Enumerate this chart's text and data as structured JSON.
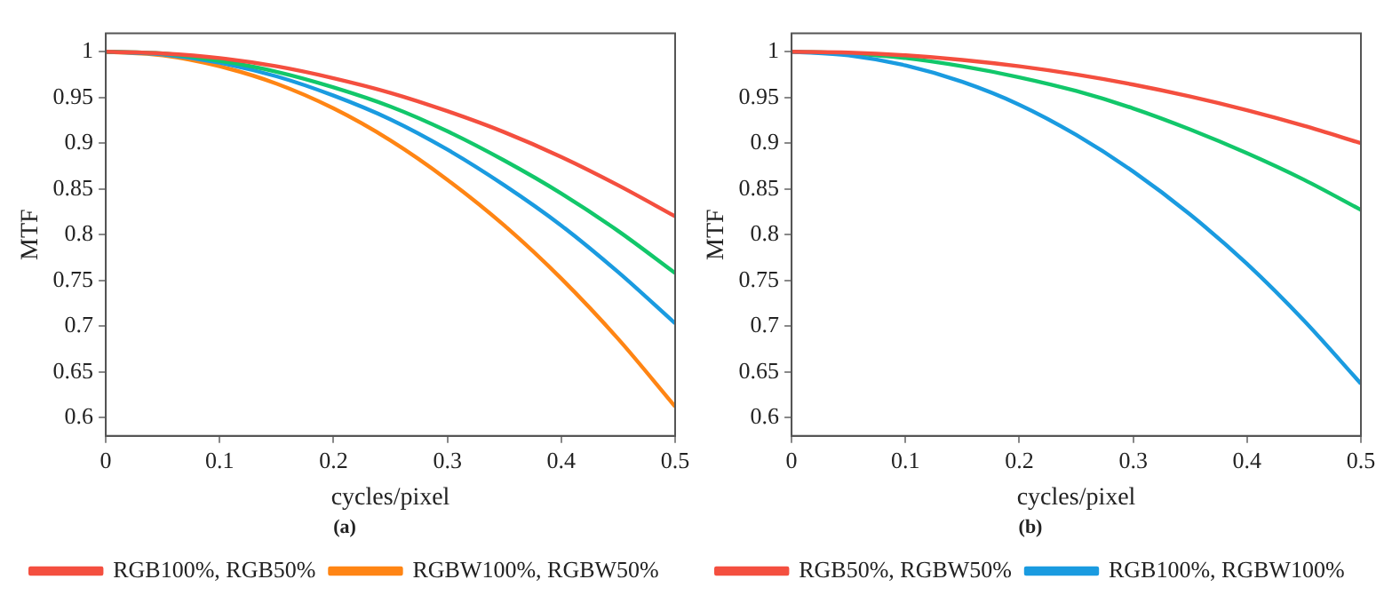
{
  "chart_data": [
    {
      "type": "line",
      "xlabel": "cycles/pixel",
      "ylabel": "MTF",
      "annotations": [
        "(a)"
      ],
      "x": [
        0,
        0.05,
        0.1,
        0.15,
        0.2,
        0.25,
        0.3,
        0.35,
        0.4,
        0.45,
        0.5
      ],
      "xlim": [
        0,
        0.5
      ],
      "xticks": [
        0,
        0.1,
        0.2,
        0.3,
        0.4,
        0.5
      ],
      "ylim": [
        0.58,
        1.02
      ],
      "yticks": [
        0.6,
        0.65,
        0.7,
        0.75,
        0.8,
        0.85,
        0.9,
        0.95,
        1
      ],
      "grid": false,
      "legend": "bottom",
      "marker": "none",
      "line_style": "solid",
      "series": [
        {
          "name": "RGB100%, RGB50%",
          "color": "#f44f3f",
          "values": [
            1,
            0.998,
            0.993,
            0.984,
            0.971,
            0.955,
            0.935,
            0.912,
            0.885,
            0.854,
            0.82
          ]
        },
        {
          "color": "#12c76a",
          "values": [
            1,
            0.998,
            0.99,
            0.978,
            0.961,
            0.94,
            0.913,
            0.881,
            0.845,
            0.804,
            0.758
          ]
        },
        {
          "color": "#1a9be0",
          "values": [
            1,
            0.997,
            0.988,
            0.973,
            0.952,
            0.926,
            0.893,
            0.854,
            0.81,
            0.759,
            0.703
          ]
        },
        {
          "name": "RGBW100%, RGBW50%",
          "color": "#ff8514",
          "values": [
            1,
            0.996,
            0.984,
            0.965,
            0.938,
            0.903,
            0.86,
            0.81,
            0.752,
            0.686,
            0.612
          ]
        }
      ]
    },
    {
      "type": "line",
      "xlabel": "cycles/pixel",
      "ylabel": "MTF",
      "annotations": [
        "(b)"
      ],
      "x": [
        0,
        0.05,
        0.1,
        0.15,
        0.2,
        0.25,
        0.3,
        0.35,
        0.4,
        0.45,
        0.5
      ],
      "xlim": [
        0,
        0.5
      ],
      "xticks": [
        0,
        0.1,
        0.2,
        0.3,
        0.4,
        0.5
      ],
      "ylim": [
        0.58,
        1.02
      ],
      "yticks": [
        0.6,
        0.65,
        0.7,
        0.75,
        0.8,
        0.85,
        0.9,
        0.95,
        1
      ],
      "grid": false,
      "legend": "bottom",
      "marker": "none",
      "line_style": "solid",
      "series": [
        {
          "name": "RGB50%, RGBW50%",
          "color": "#f44f3f",
          "values": [
            1,
            0.999,
            0.996,
            0.991,
            0.984,
            0.975,
            0.964,
            0.951,
            0.936,
            0.919,
            0.9
          ]
        },
        {
          "name": "RGB100%, RGBW100%",
          "color": "#1a9be0",
          "values": [
            1,
            0.996,
            0.985,
            0.967,
            0.942,
            0.909,
            0.869,
            0.822,
            0.768,
            0.706,
            0.637
          ]
        },
        {
          "color": "#12c76a",
          "values": [
            1,
            0.998,
            0.993,
            0.984,
            0.972,
            0.957,
            0.938,
            0.915,
            0.889,
            0.86,
            0.827
          ]
        }
      ]
    }
  ]
}
